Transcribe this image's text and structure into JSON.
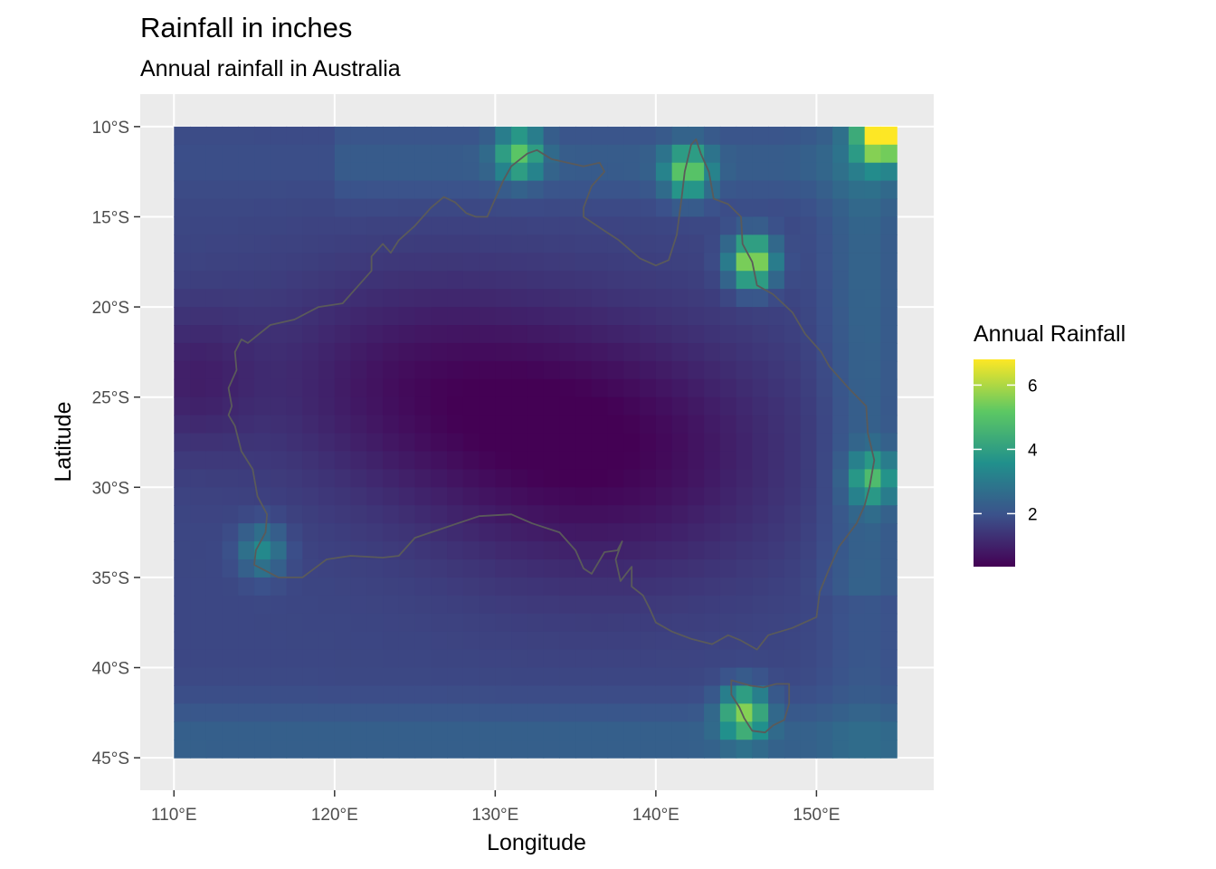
{
  "title": "Rainfall in inches",
  "subtitle": "Annual rainfall in Australia",
  "colors": {
    "panel_background": "#ebebeb",
    "grid": "#ffffff",
    "coastline": "#5a5a5a",
    "scale": [
      "#440154",
      "#3b528b",
      "#21908c",
      "#5dc863",
      "#fde725"
    ]
  },
  "chart_data": {
    "type": "heatmap",
    "xlabel": "Longitude",
    "ylabel": "Latitude",
    "xlim": [
      107.9,
      157.3
    ],
    "ylim": [
      -46.8,
      -8.2
    ],
    "x_ticks": [
      {
        "value": 110,
        "label": "110°E"
      },
      {
        "value": 120,
        "label": "120°E"
      },
      {
        "value": 130,
        "label": "130°E"
      },
      {
        "value": 140,
        "label": "140°E"
      },
      {
        "value": 150,
        "label": "150°E"
      }
    ],
    "y_ticks": [
      {
        "value": -10,
        "label": "10°S"
      },
      {
        "value": -15,
        "label": "15°S"
      },
      {
        "value": -20,
        "label": "20°S"
      },
      {
        "value": -25,
        "label": "25°S"
      },
      {
        "value": -30,
        "label": "30°S"
      },
      {
        "value": -35,
        "label": "35°S"
      },
      {
        "value": -40,
        "label": "40°S"
      },
      {
        "value": -45,
        "label": "45°S"
      }
    ],
    "grid": true,
    "raster": {
      "lon_range": [
        110,
        155
      ],
      "lat_range": [
        -45,
        -10
      ],
      "resolution_deg": 1,
      "value_min": 0.35,
      "value_max": 6.8,
      "hotspots": [
        {
          "lon": 154,
          "lat": -10.5,
          "value": 6.8
        },
        {
          "lon": 146,
          "lat": -17.5,
          "value": 6.0
        },
        {
          "lon": 145.5,
          "lat": -42.5,
          "value": 5.2
        },
        {
          "lon": 142,
          "lat": -12.5,
          "value": 4.9
        },
        {
          "lon": 131.5,
          "lat": -11.5,
          "value": 4.6
        },
        {
          "lon": 153.5,
          "lat": -29.5,
          "value": 4.2
        },
        {
          "lon": 115.5,
          "lat": -33.5,
          "value": 3.4
        }
      ]
    },
    "legend": {
      "title": "Annual Rainfall",
      "placement": "right",
      "min": 0.35,
      "max": 6.8,
      "breaks": [
        2,
        4,
        6
      ],
      "labels": [
        "2",
        "4",
        "6"
      ]
    }
  }
}
